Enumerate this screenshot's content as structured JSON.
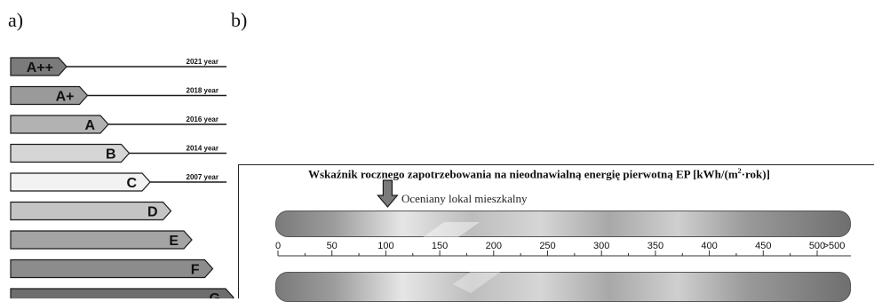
{
  "panel_a": {
    "label": "a)",
    "classes": [
      {
        "name": "A++",
        "fill": "#7b7b7b",
        "year": "2021 year"
      },
      {
        "name": "A+",
        "fill": "#9a9a9a",
        "year": "2018 year"
      },
      {
        "name": "A",
        "fill": "#b2b2b2",
        "year": "2016 year"
      },
      {
        "name": "B",
        "fill": "#d6d6d6",
        "year": "2014 year"
      },
      {
        "name": "C",
        "fill": "#f2f2f2",
        "year": "2007 year"
      },
      {
        "name": "D",
        "fill": "#c4c4c4",
        "year": ""
      },
      {
        "name": "E",
        "fill": "#a4a4a4",
        "year": ""
      },
      {
        "name": "F",
        "fill": "#8c8c8c",
        "year": ""
      },
      {
        "name": "G",
        "fill": "#6e6e6e",
        "year": ""
      }
    ]
  },
  "panel_b": {
    "label": "b)",
    "title_main": "Wskaźnik rocznego zapotrzebowania na nieodnawialną energię pierwotną EP [kWh/(m",
    "title_sup": "2",
    "title_end": "·rok)]",
    "apartment_label": "Oceniany lokal mieszkalny",
    "marker_value": 100,
    "scale_labels": [
      "0",
      "50",
      "100",
      "150",
      "200",
      "250",
      "300",
      "350",
      "400",
      "450",
      "500",
      ">500"
    ],
    "scale_values": [
      0,
      50,
      100,
      150,
      200,
      250,
      300,
      350,
      400,
      450,
      500
    ]
  }
}
